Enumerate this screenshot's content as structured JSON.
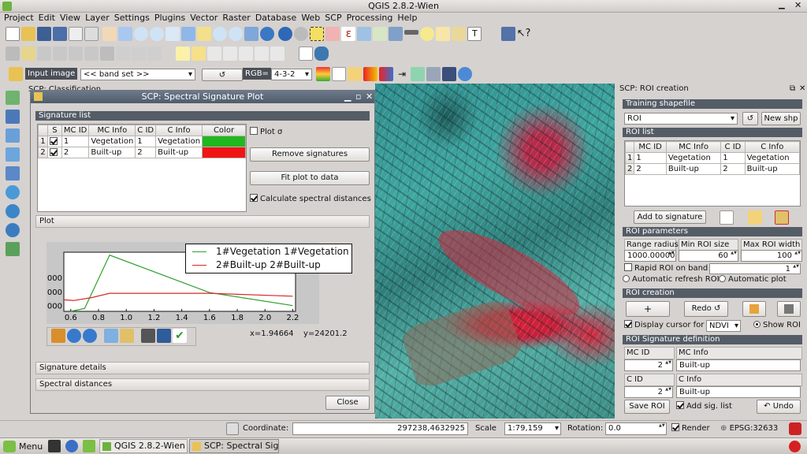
{
  "window": {
    "title": "QGIS 2.8.2-Wien"
  },
  "menubar": [
    "Project",
    "Edit",
    "View",
    "Layer",
    "Settings",
    "Plugins",
    "Vector",
    "Raster",
    "Database",
    "Web",
    "SCP",
    "Processing",
    "Help"
  ],
  "scp_toolbar": {
    "input_label": "Input image",
    "band_set": "<< band set >>",
    "rgb_label": "RGB=",
    "rgb_value": "4-3-2"
  },
  "left_dock_title": "SCP: Classification",
  "plot_window": {
    "title": "SCP: Spectral Signature Plot",
    "signature_list_title": "Signature list",
    "columns": [
      "S",
      "MC ID",
      "MC Info",
      "C ID",
      "C Info",
      "Color"
    ],
    "rows": [
      {
        "num": "1",
        "mc_id": "1",
        "mc_info": "Vegetation",
        "c_id": "1",
        "c_info": "Vegetation",
        "color": "#1fb81f"
      },
      {
        "num": "2",
        "mc_id": "2",
        "mc_info": "Built-up",
        "c_id": "2",
        "c_info": "Built-up",
        "color": "#f01414"
      }
    ],
    "plot_sigma": "Plot σ",
    "remove_signatures": "Remove signatures",
    "fit_plot": "Fit plot to data",
    "calc_distances": "Calculate spectral distances",
    "plot_section": "Plot",
    "coord_x": "x=1.94664",
    "coord_y": "y=24201.2",
    "signature_details": "Signature details",
    "spectral_distances": "Spectral distances",
    "close": "Close"
  },
  "chart_data": {
    "type": "line",
    "xticks": [
      "0.6",
      "0.8",
      "1.0",
      "1.2",
      "1.4",
      "1.6",
      "1.8",
      "2.0",
      "2.2"
    ],
    "yticks": [
      "000",
      "000",
      "000"
    ],
    "xlim": [
      0.55,
      2.22
    ],
    "series": [
      {
        "name": "1#Vegetation 1#Vegetation",
        "color": "#2ca02c",
        "points": [
          [
            0.6,
            -0.4
          ],
          [
            0.7,
            -0.1
          ],
          [
            0.88,
            3.6
          ],
          [
            1.6,
            1.0
          ],
          [
            2.2,
            0.1
          ]
        ]
      },
      {
        "name": "2#Built-up 2#Built-up",
        "color": "#d62728",
        "points": [
          [
            0.55,
            0.5
          ],
          [
            0.62,
            0.45
          ],
          [
            0.75,
            0.65
          ],
          [
            0.88,
            0.95
          ],
          [
            1.6,
            0.95
          ],
          [
            2.2,
            0.75
          ]
        ]
      }
    ]
  },
  "roi_panel": {
    "title": "SCP: ROI creation",
    "training_title": "Training shapefile",
    "shapefile": "ROI",
    "new_shp": "New shp",
    "roi_list_title": "ROI list",
    "columns": [
      "MC ID",
      "MC Info",
      "C ID",
      "C Info"
    ],
    "rows": [
      {
        "num": "1",
        "mc_id": "1",
        "mc_info": "Vegetation",
        "c_id": "1",
        "c_info": "Vegetation"
      },
      {
        "num": "2",
        "mc_id": "2",
        "mc_info": "Built-up",
        "c_id": "2",
        "c_info": "Built-up"
      }
    ],
    "add_to_signature": "Add to signature",
    "params_title": "ROI parameters",
    "range_radius_label": "Range radius",
    "min_roi_label": "Min ROI size",
    "max_roi_label": "Max ROI width",
    "range_radius": "1000.000000",
    "min_roi": "60",
    "max_roi": "100",
    "rapid_roi": "Rapid ROI on band",
    "rapid_band": "1",
    "auto_refresh": "Automatic refresh ROI",
    "auto_plot": "Automatic  plot",
    "creation_title": "ROI creation",
    "plus": "+",
    "redo": "Redo ↺",
    "display_cursor": "Display cursor for",
    "cursor_index": "NDVI",
    "show_roi": "Show ROI",
    "sigdef_title": "ROI Signature definition",
    "mc_id_label": "MC ID",
    "mc_info_label": "MC Info",
    "mc_id": "2",
    "mc_info": "Built-up",
    "c_id_label": "C ID",
    "c_info_label": "C Info",
    "c_id": "2",
    "c_info": "Built-up",
    "save_roi": "Save ROI",
    "add_sig_list": "Add sig. list",
    "undo": "↶ Undo"
  },
  "statusbar": {
    "coordinate_label": "Coordinate:",
    "coordinate": "297238,4632925",
    "scale_label": "Scale",
    "scale": "1:79,159",
    "rotation_label": "Rotation:",
    "rotation": "0.0",
    "render": "Render",
    "epsg": "EPSG:32633"
  },
  "taskbar": {
    "menu": "Menu",
    "task1": "QGIS 2.8.2-Wien",
    "task2": "SCP: Spectral Sig..."
  }
}
